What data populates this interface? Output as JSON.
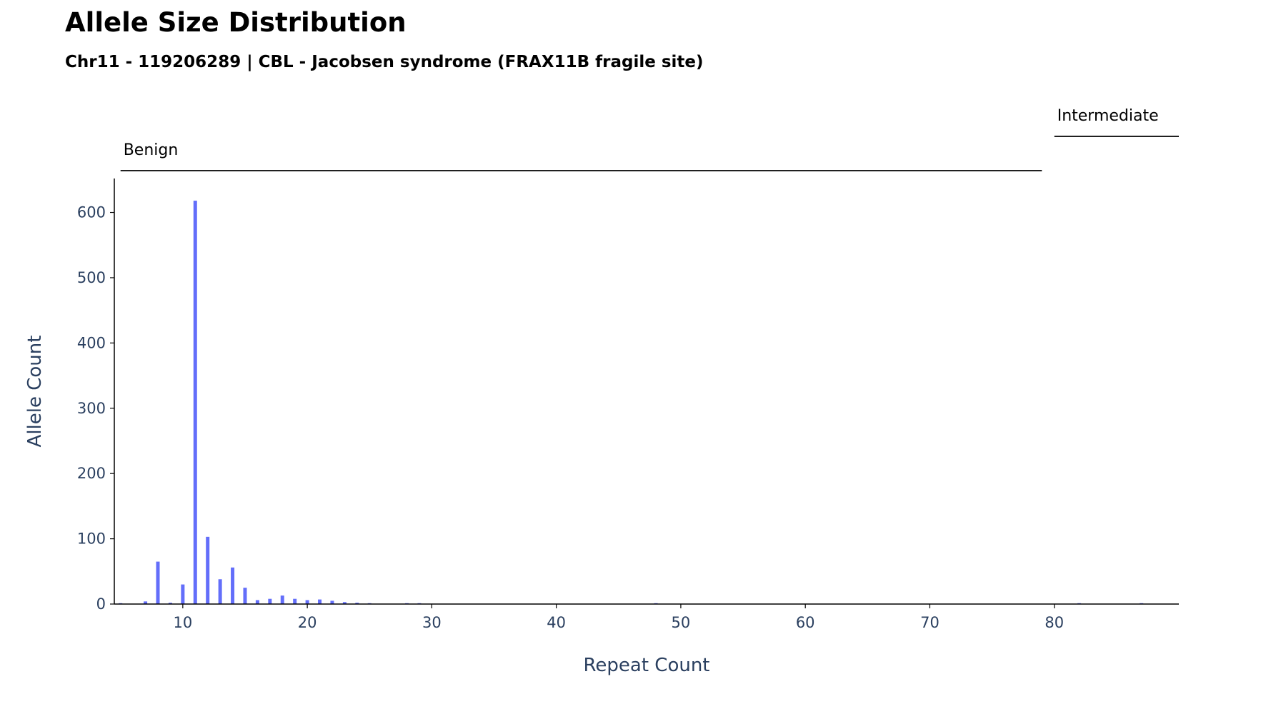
{
  "title": "Allele Size Distribution",
  "subtitle": "Chr11 - 119206289 | CBL - Jacobsen syndrome (FRAX11B fragile site)",
  "colors": {
    "bar": "#636efa",
    "axis": "#000000",
    "text": "#2a3f5f"
  },
  "chart_data": {
    "type": "bar",
    "xlabel": "Repeat Count",
    "ylabel": "Allele Count",
    "xlim": [
      4.5,
      90
    ],
    "ylim": [
      0,
      652
    ],
    "x_ticks": [
      10,
      20,
      30,
      40,
      50,
      60,
      70,
      80
    ],
    "y_ticks": [
      0,
      100,
      200,
      300,
      400,
      500,
      600
    ],
    "x": [
      5,
      7,
      8,
      9,
      10,
      11,
      12,
      13,
      14,
      15,
      16,
      17,
      18,
      19,
      20,
      21,
      22,
      23,
      24,
      25,
      28,
      29,
      48,
      82,
      87
    ],
    "values": [
      1,
      4,
      65,
      2,
      30,
      618,
      103,
      38,
      56,
      25,
      6,
      8,
      13,
      8,
      6,
      7,
      5,
      3,
      2,
      1,
      1,
      1,
      1,
      1,
      1
    ],
    "ranges": [
      {
        "label": "Benign",
        "start": 5,
        "end": 79
      },
      {
        "label": "Intermediate",
        "start": 80,
        "end": 90
      }
    ],
    "grid": false,
    "legend": "none"
  }
}
